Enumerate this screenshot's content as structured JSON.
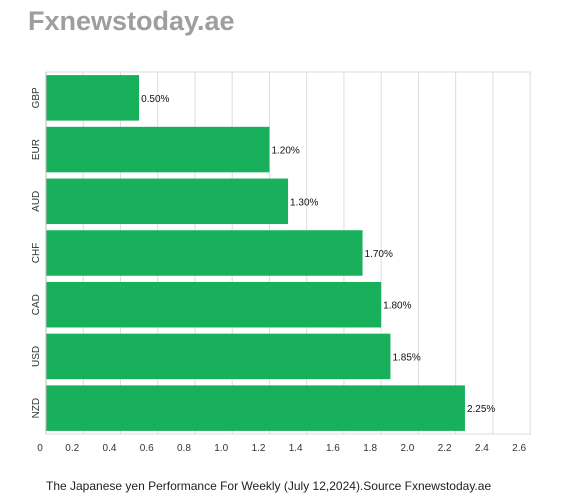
{
  "brand": "Fxnewstoday.ae",
  "caption": "The Japanese yen Performance For Weekly (July 12,2024).Source Fxnewstoday.ae",
  "colors": {
    "bar": "#18b05a",
    "grid": "#dddddd",
    "axis": "#bbbbbb"
  },
  "chart_data": {
    "type": "bar",
    "orientation": "horizontal",
    "categories": [
      "GBP",
      "EUR",
      "AUD",
      "CHF",
      "CAD",
      "USD",
      "NZD"
    ],
    "values": [
      0.5,
      1.2,
      1.3,
      1.7,
      1.8,
      1.85,
      2.25
    ],
    "data_labels": [
      "0.50%",
      "1.20%",
      "1.30%",
      "1.70%",
      "1.80%",
      "1.85%",
      "2.25%"
    ],
    "x_ticks": [
      0,
      0.2,
      0.4,
      0.6,
      0.8,
      1.0,
      1.2,
      1.4,
      1.6,
      1.8,
      2.0,
      2.2,
      2.4,
      2.6
    ],
    "x_tick_labels": [
      "0",
      "0.2",
      "0.4",
      "0.6",
      "0.8",
      "1.0",
      "1.2",
      "1.4",
      "1.6",
      "1.8",
      "2.0",
      "2.2",
      "2.4",
      "2.6"
    ],
    "xlim": [
      0,
      2.6
    ],
    "grid": true,
    "legend": "none"
  }
}
